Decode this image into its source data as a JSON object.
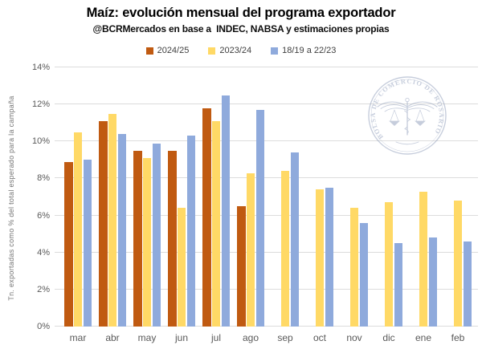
{
  "chart_data": {
    "type": "bar",
    "title": "Maíz: evolución mensual del programa exportador",
    "subtitle": "@BCRMercados en base a  INDEC, NABSA y estimaciones propias",
    "ylabel": "Tn. exportadas como % del total esperado para la campaña",
    "xlabel": "",
    "ylim": [
      0,
      14
    ],
    "ytick_step": 2,
    "yticks": [
      "0%",
      "2%",
      "4%",
      "6%",
      "8%",
      "10%",
      "12%",
      "14%"
    ],
    "grid": true,
    "legend_position": "top",
    "categories": [
      "mar",
      "abr",
      "may",
      "jun",
      "jul",
      "ago",
      "sep",
      "oct",
      "nov",
      "dic",
      "ene",
      "feb"
    ],
    "series": [
      {
        "name": "2024/25",
        "color": "#C05A11",
        "values": [
          8.9,
          11.1,
          9.5,
          9.5,
          11.8,
          6.5,
          null,
          null,
          null,
          null,
          null,
          null
        ]
      },
      {
        "name": "2023/24",
        "color": "#FFD966",
        "values": [
          10.5,
          11.5,
          9.1,
          6.4,
          11.1,
          8.3,
          8.4,
          7.4,
          6.4,
          6.7,
          7.3,
          6.8
        ]
      },
      {
        "name": "18/19 a 22/23",
        "color": "#8FAADC",
        "values": [
          9.0,
          10.4,
          9.9,
          10.3,
          12.5,
          11.7,
          9.4,
          7.5,
          5.6,
          4.5,
          4.8,
          4.6
        ]
      }
    ]
  },
  "watermark": {
    "ring_text": "BOLSA DE COMERCIO DE ROSARIO",
    "color": "#8f9dba"
  },
  "colors": {
    "background": "#ffffff",
    "gridline": "#dcdcdc",
    "tick_text": "#595959",
    "axis_title_text": "#757575",
    "title_text": "#000000"
  }
}
